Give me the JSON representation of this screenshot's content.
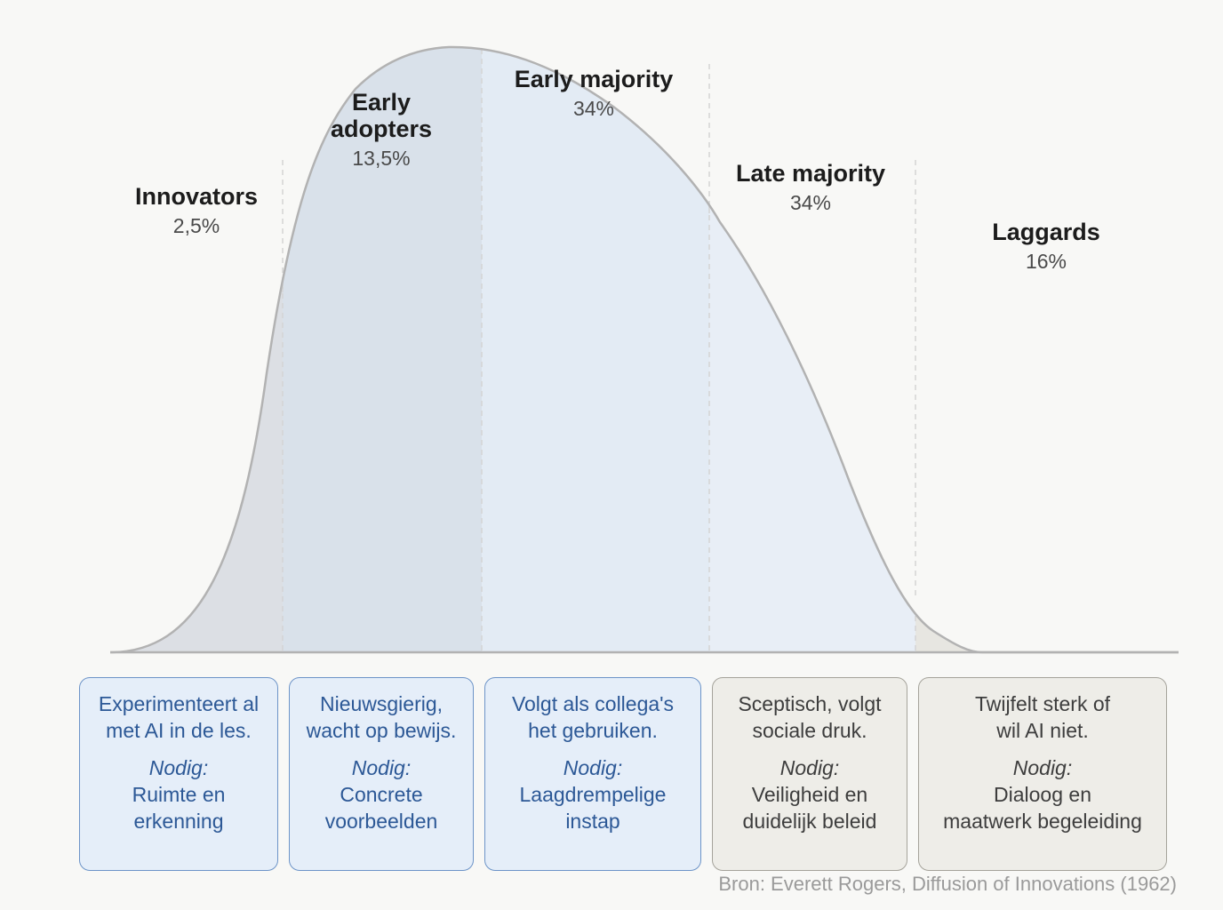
{
  "segments": [
    {
      "name": "Innovators",
      "percent": "2,5%",
      "style": "blue",
      "description": "Experimenteert al\nmet AI in de les.",
      "needed_label": "Nodig:",
      "needed": "Ruimte en\nerkenning"
    },
    {
      "name": "Early\nadopters",
      "percent": "13,5%",
      "style": "blue",
      "description": "Nieuwsgierig,\nwacht op bewijs.",
      "needed_label": "Nodig:",
      "needed": "Concrete\nvoorbeelden"
    },
    {
      "name": "Early majority",
      "percent": "34%",
      "style": "blue",
      "description": "Volgt als collega's\nhet gebruiken.",
      "needed_label": "Nodig:",
      "needed": "Laagdrempelige\ninstap"
    },
    {
      "name": "Late majority",
      "percent": "34%",
      "style": "grey",
      "description": "Sceptisch, volgt\nsociale druk.",
      "needed_label": "Nodig:",
      "needed": "Veiligheid en\nduidelijk beleid"
    },
    {
      "name": "Laggards",
      "percent": "16%",
      "style": "grey",
      "description": "Twijfelt sterk of\nwil AI niet.",
      "needed_label": "Nodig:",
      "needed": "Dialoog en\nmaatwerk begeleiding"
    }
  ],
  "colors": {
    "fill_innovators": "#dcdfe4",
    "fill_early_adopters": "#d9e1ea",
    "fill_early_majority": "#e3ebf4",
    "fill_late_majority": "#e8eef6",
    "fill_laggards": "#e7e6e1",
    "curve_stroke": "#b2b2b2",
    "divider": "#d4d4d4",
    "card_blue_bg": "#e5eef9",
    "card_blue_border": "#6d94c8",
    "card_blue_text": "#2c5896",
    "card_grey_bg": "#eeede8",
    "card_grey_border": "#a5a39b"
  },
  "source": "Bron: Everett Rogers, Diffusion of Innovations (1962)"
}
